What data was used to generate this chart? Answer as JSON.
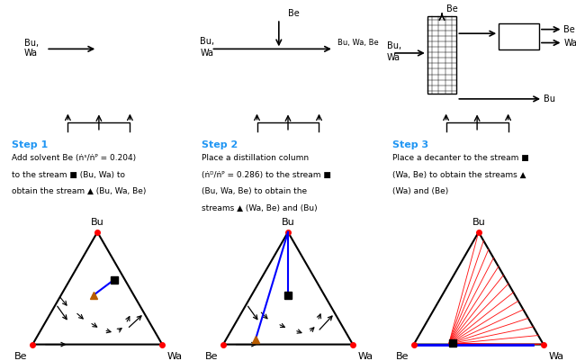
{
  "bg_color": "#dce9f5",
  "step_color": "#2196F3",
  "text_color": "#000000",
  "step1_lines": [
    "Add solvent Be (ṅˢ/ṅᴾ = 0.204)",
    "to the stream ■ (Bu, Wa) to",
    "obtain the stream ▲ (Bu, Wa, Be)"
  ],
  "step2_lines": [
    "Place a distillation column",
    "(ṅᴰ/ṅᴾ = 0.286) to the stream ■",
    "(Bu, Wa, Be) to obtain the",
    "streams ▲ (Wa, Be) and (Bu)"
  ],
  "step3_lines": [
    "Place a decanter to the stream ■",
    "(Wa, Be) to obtain the streams ▲",
    "(Wa) and (Be)"
  ]
}
